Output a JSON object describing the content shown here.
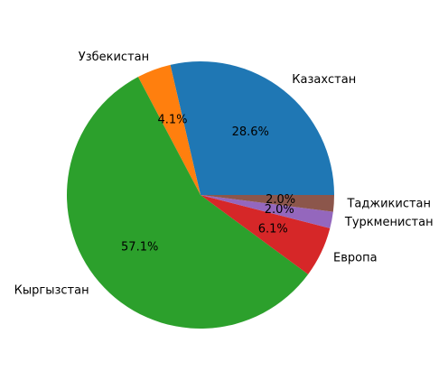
{
  "chart_data": {
    "type": "pie",
    "title": "",
    "labels": [
      "Казахстан",
      "Узбекистан",
      "Кыргызстан",
      "Европа",
      "Туркменистан",
      "Таджикистан"
    ],
    "values": [
      28.6,
      4.1,
      57.1,
      6.1,
      2.0,
      2.0
    ],
    "pct_labels": [
      "28.6%",
      "4.1%",
      "57.1%",
      "6.1%",
      "2.0%",
      "2.0%"
    ],
    "colors": [
      "#1f77b4",
      "#ff7f0e",
      "#2ca02c",
      "#d62728",
      "#9467bd",
      "#8c564b"
    ],
    "start_angle_deg": 0,
    "direction": "counterclockwise"
  }
}
